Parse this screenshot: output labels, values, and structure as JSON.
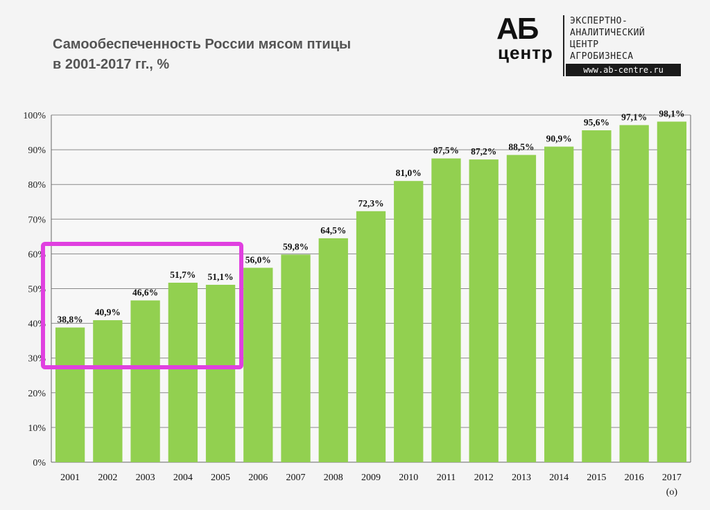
{
  "title_lines": [
    "Самообеспеченность России мясом птицы",
    "в 2001-2017 гг., %"
  ],
  "logo": {
    "mark": "АБ",
    "sub": "центр",
    "lines": [
      "ЭКСПЕРТНО-",
      "АНАЛИТИЧЕСКИЙ",
      "ЦЕНТР",
      "АГРОБИЗНЕСА"
    ],
    "url": "www.ab-centre.ru"
  },
  "colors": {
    "bar": "#92d050",
    "highlight": "#e040e0",
    "grid": "#888888"
  },
  "chart_data": {
    "type": "bar",
    "title": "Самообеспеченность России мясом птицы в 2001-2017 гг., %",
    "categories": [
      "2001",
      "2002",
      "2003",
      "2004",
      "2005",
      "2006",
      "2007",
      "2008",
      "2009",
      "2010",
      "2011",
      "2012",
      "2013",
      "2014",
      "2015",
      "2016",
      "2017"
    ],
    "category_notes": {
      "2017": "(о)"
    },
    "values": [
      38.8,
      40.9,
      46.6,
      51.7,
      51.1,
      56.0,
      59.8,
      64.5,
      72.3,
      81.0,
      87.5,
      87.2,
      88.5,
      90.9,
      95.6,
      97.1,
      98.1
    ],
    "data_labels": [
      "38,8%",
      "40,9%",
      "46,6%",
      "51,7%",
      "51,1%",
      "56,0%",
      "59,8%",
      "64,5%",
      "72,3%",
      "81,0%",
      "87,5%",
      "87,2%",
      "88,5%",
      "90,9%",
      "95,6%",
      "97,1%",
      "98,1%"
    ],
    "y_ticks": [
      0,
      10,
      20,
      30,
      40,
      50,
      60,
      70,
      80,
      90,
      100
    ],
    "y_tick_labels": [
      "0%",
      "10%",
      "20%",
      "30%",
      "40%",
      "50%",
      "60%",
      "70%",
      "80%",
      "90%",
      "100%"
    ],
    "ylim": [
      0,
      100
    ],
    "grid": true,
    "highlighted_categories": [
      "2001",
      "2002",
      "2003",
      "2004",
      "2005"
    ]
  }
}
